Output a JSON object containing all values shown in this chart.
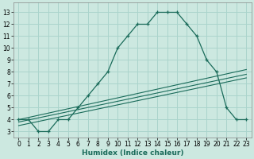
{
  "xlabel": "Humidex (Indice chaleur)",
  "background_color": "#cce8e0",
  "grid_color": "#aad4cc",
  "line_color": "#1a6b5a",
  "xlim": [
    -0.5,
    23.5
  ],
  "ylim": [
    2.5,
    13.8
  ],
  "xticks": [
    0,
    1,
    2,
    3,
    4,
    5,
    6,
    7,
    8,
    9,
    10,
    11,
    12,
    13,
    14,
    15,
    16,
    17,
    18,
    19,
    20,
    21,
    22,
    23
  ],
  "yticks": [
    3,
    4,
    5,
    6,
    7,
    8,
    9,
    10,
    11,
    12,
    13
  ],
  "main_curve": {
    "x": [
      0,
      1,
      2,
      3,
      4,
      5,
      6,
      7,
      8,
      9,
      10,
      11,
      12,
      13,
      14,
      15,
      16,
      17,
      18,
      19,
      20,
      21,
      22,
      23
    ],
    "y": [
      4,
      4,
      3,
      3,
      4,
      4,
      5,
      6,
      7,
      8,
      10,
      11,
      12,
      12,
      13,
      13,
      13,
      12,
      11,
      9,
      8,
      5,
      4,
      4
    ]
  },
  "diag_lines": [
    {
      "x": [
        0,
        23
      ],
      "y": [
        4.0,
        8.2
      ]
    },
    {
      "x": [
        0,
        23
      ],
      "y": [
        3.8,
        7.8
      ]
    },
    {
      "x": [
        0,
        23
      ],
      "y": [
        3.5,
        7.5
      ]
    }
  ],
  "tick_fontsize": 5.5,
  "xlabel_fontsize": 6.5
}
